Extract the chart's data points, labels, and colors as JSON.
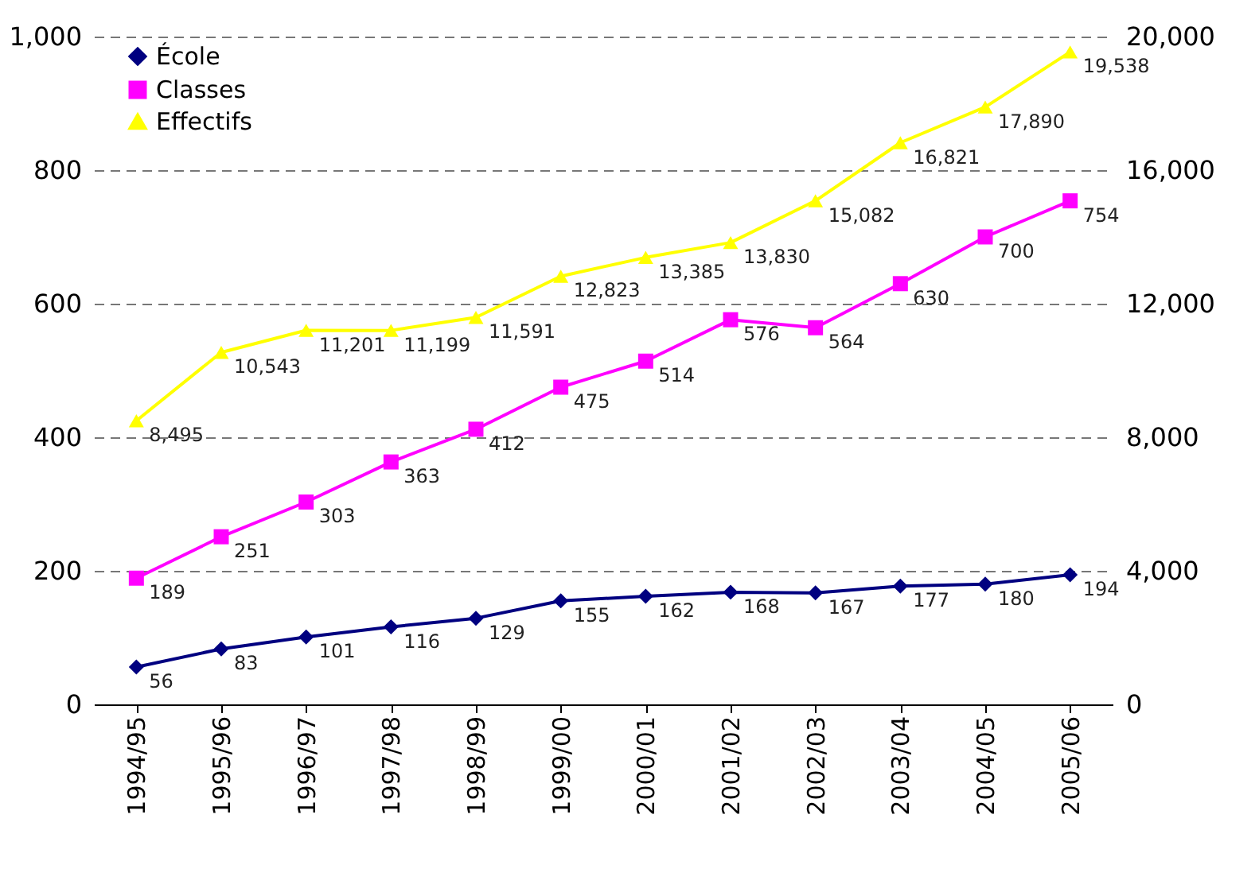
{
  "chart_data": {
    "type": "line",
    "categories": [
      "1994/95",
      "1995/96",
      "1996/97",
      "1997/98",
      "1998/99",
      "1999/00",
      "2000/01",
      "2001/02",
      "2002/03",
      "2003/04",
      "2004/05",
      "2005/06"
    ],
    "series": [
      {
        "name": "École",
        "color": "#000080",
        "marker": "diamond",
        "values": [
          56,
          83,
          101,
          116,
          129,
          155,
          162,
          168,
          167,
          177,
          180,
          194
        ]
      },
      {
        "name": "Classes",
        "color": "#ff00ff",
        "marker": "square",
        "values": [
          189,
          251,
          303,
          363,
          412,
          475,
          514,
          576,
          564,
          630,
          700,
          754
        ]
      },
      {
        "name": "Effectifs",
        "color": "#ffff00",
        "marker": "triangle",
        "axis": "y2",
        "values": [
          8495,
          10543,
          11201,
          11199,
          11591,
          12823,
          13385,
          13830,
          15082,
          16821,
          17890,
          19538
        ],
        "value_labels": [
          "8,495",
          "10,543",
          "11,201",
          "11,199",
          "11,591",
          "12,823",
          "13,385",
          "13,830",
          "15,082",
          "16,821",
          "17,890",
          "19,538"
        ]
      }
    ],
    "ylim": [
      0,
      1000
    ],
    "yticks": [
      0,
      200,
      400,
      600,
      800,
      {
        "value": 1000,
        "label": "1,000"
      }
    ],
    "y2lim": [
      0,
      20000
    ],
    "y2ticks": [
      0,
      {
        "value": 4000,
        "label": "4,000"
      },
      {
        "value": 8000,
        "label": "8,000"
      },
      {
        "value": 12000,
        "label": "12,000"
      },
      {
        "value": 16000,
        "label": "16,000"
      },
      {
        "value": 20000,
        "label": "20,000"
      }
    ],
    "grid": "y",
    "legend": "top left",
    "data_labels": true,
    "line_style": "solid"
  }
}
